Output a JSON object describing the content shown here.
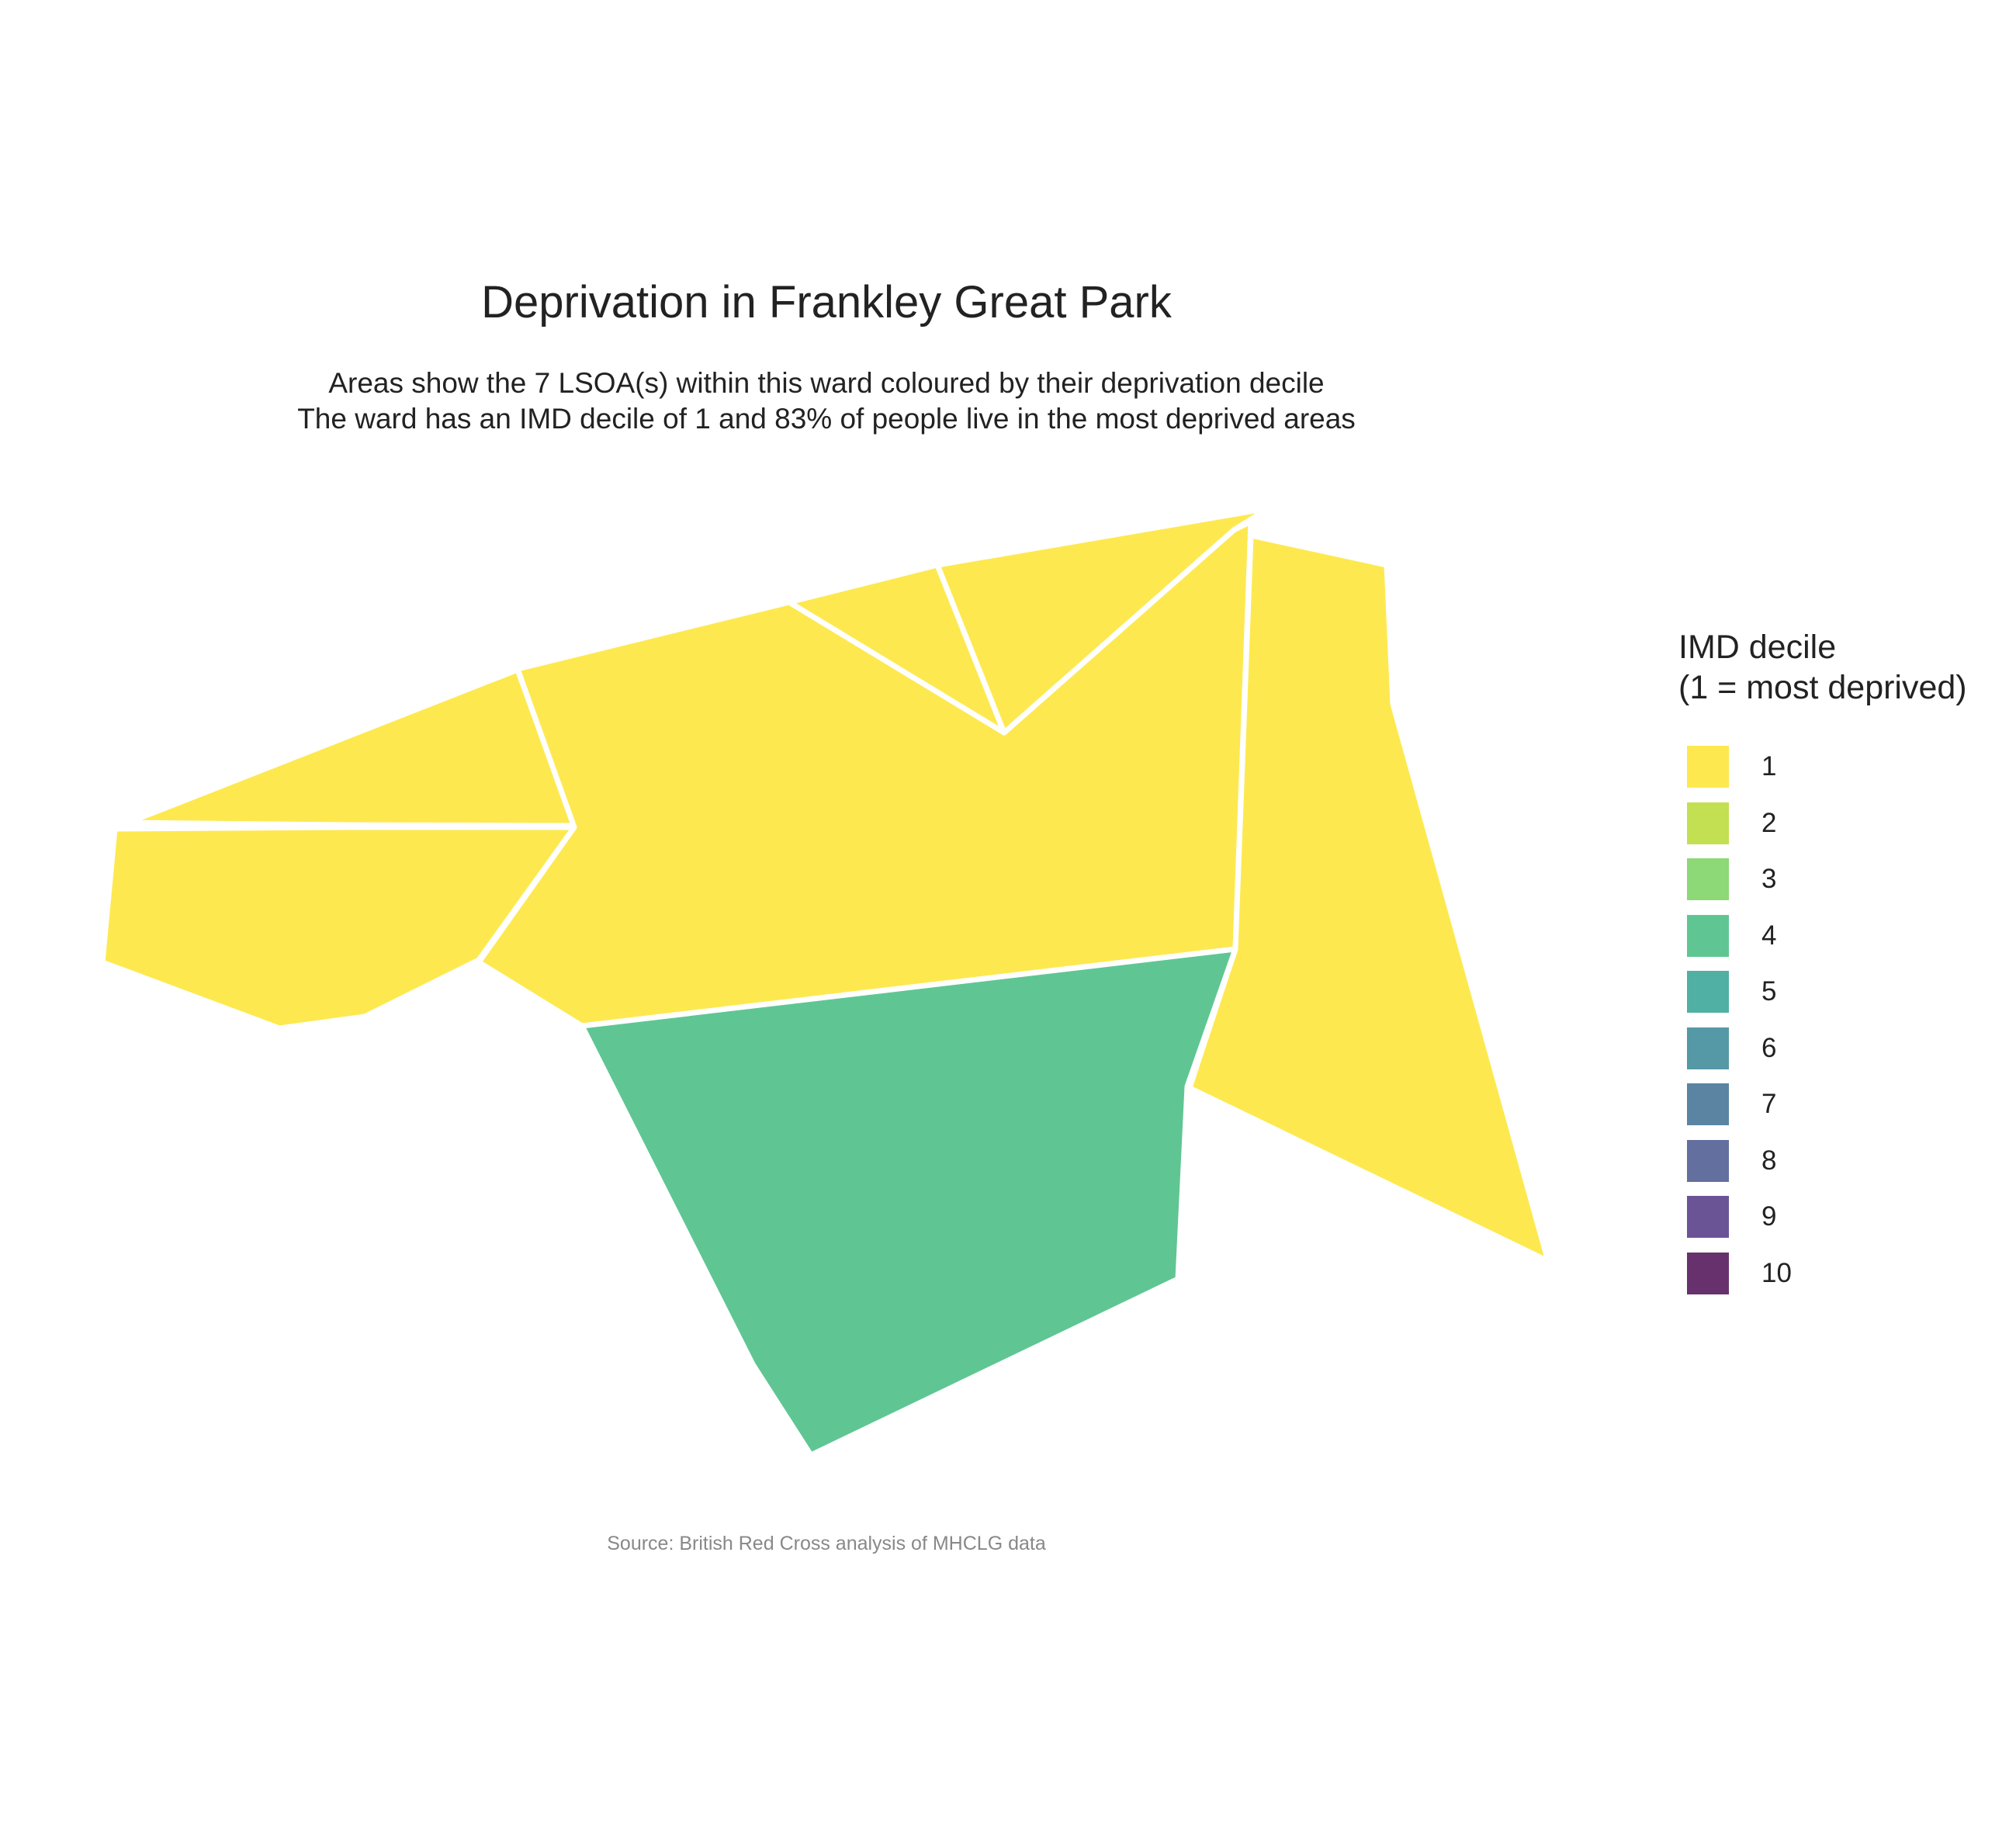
{
  "title": "Deprivation in Frankley Great Park",
  "subtitle_line1": "Areas show the 7 LSOA(s) within this ward coloured by their deprivation decile",
  "subtitle_line2": "The ward has an IMD decile of 1 and 83% of people live in the most deprived areas",
  "caption": "Source: British Red Cross analysis of MHCLG data",
  "legend": {
    "title_line1": "IMD decile",
    "title_line2": "(1 = most deprived)",
    "items": [
      {
        "label": "1",
        "color": "#FDE94F"
      },
      {
        "label": "2",
        "color": "#C2E052"
      },
      {
        "label": "3",
        "color": "#8DD877"
      },
      {
        "label": "4",
        "color": "#5FC693"
      },
      {
        "label": "5",
        "color": "#4FB0A3"
      },
      {
        "label": "6",
        "color": "#5499A5"
      },
      {
        "label": "7",
        "color": "#5A84A2"
      },
      {
        "label": "8",
        "color": "#636F9E"
      },
      {
        "label": "9",
        "color": "#6A5496"
      },
      {
        "label": "10",
        "color": "#67316E"
      }
    ]
  },
  "areas": [
    {
      "name": "northwest-lsoa",
      "decile": 1
    },
    {
      "name": "west-lsoa",
      "decile": 1
    },
    {
      "name": "central-lsoa",
      "decile": 1
    },
    {
      "name": "north-small-lsoa",
      "decile": 1
    },
    {
      "name": "northeast-wedge-lsoa",
      "decile": 1
    },
    {
      "name": "east-lsoa",
      "decile": 1
    },
    {
      "name": "south-lsoa",
      "decile": 4
    }
  ]
}
